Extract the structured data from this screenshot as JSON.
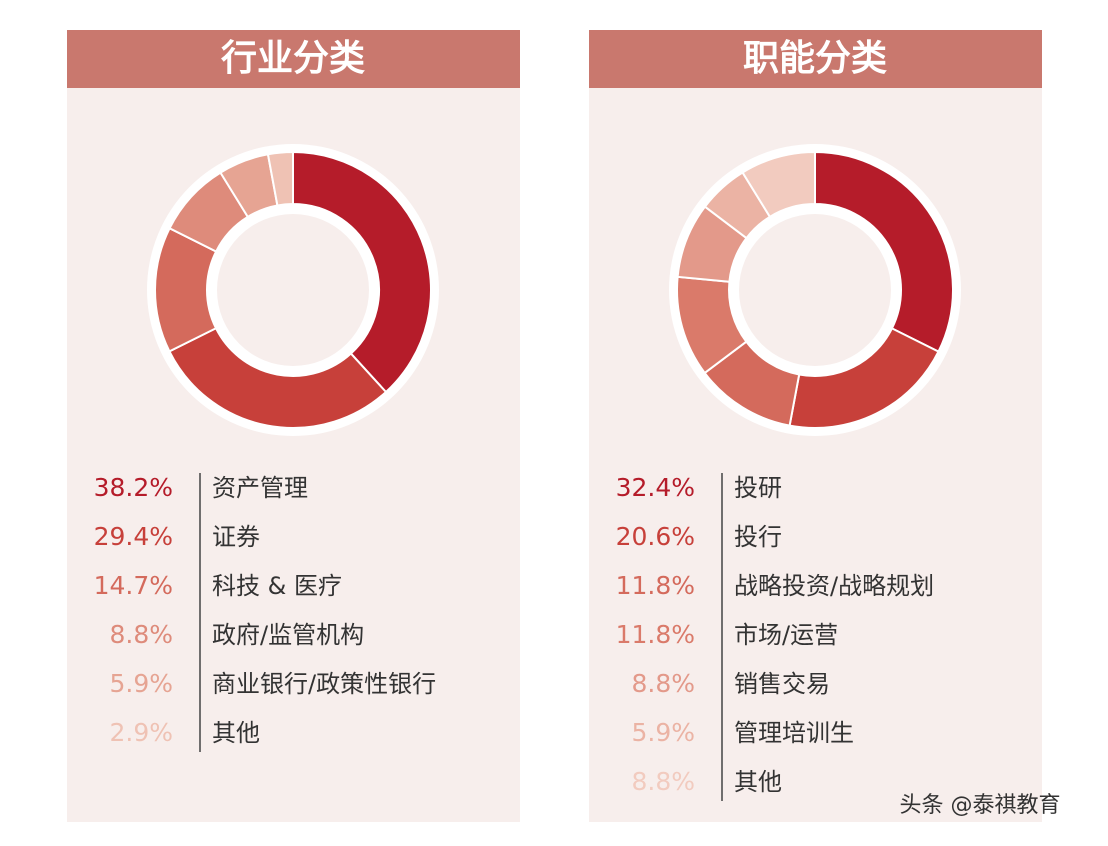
{
  "chart_data": [
    {
      "type": "pie",
      "title": "行业分类",
      "categories": [
        "资产管理",
        "证券",
        "科技 & 医疗",
        "政府/监管机构",
        "商业银行/政策性银行",
        "其他"
      ],
      "values": [
        38.2,
        29.4,
        14.7,
        8.8,
        5.9,
        2.9
      ],
      "value_labels": [
        "38.2%",
        "29.4%",
        "14.7%",
        "8.8%",
        "5.9%",
        "2.9%"
      ],
      "colors": [
        "#b51c2a",
        "#c7403a",
        "#d46a5c",
        "#de8b7b",
        "#e6a493",
        "#efc2b4"
      ]
    },
    {
      "type": "pie",
      "title": "职能分类",
      "categories": [
        "投研",
        "投行",
        "战略投资/战略规划",
        "市场/运营",
        "销售交易",
        "管理培训生",
        "其他"
      ],
      "values": [
        32.4,
        20.6,
        11.8,
        11.8,
        8.8,
        5.9,
        8.8
      ],
      "value_labels": [
        "32.4%",
        "20.6%",
        "11.8%",
        "11.8%",
        "8.8%",
        "5.9%",
        "8.8%"
      ],
      "colors": [
        "#b51c2a",
        "#c7403a",
        "#d46a5c",
        "#da7a6a",
        "#e3998a",
        "#ebb3a4",
        "#f2cbbf"
      ]
    }
  ],
  "watermark": "头条 @泰祺教育"
}
